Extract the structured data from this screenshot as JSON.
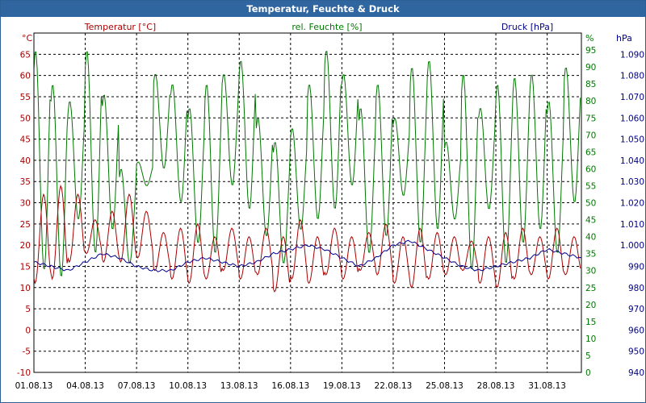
{
  "window": {
    "title": "Temperatur, Feuchte & Druck"
  },
  "chart_data": {
    "type": "line",
    "title": "Temperatur, Feuchte & Druck",
    "xlabel": "",
    "x_ticks": [
      "01.08.13",
      "04.08.13",
      "07.08.13",
      "10.08.13",
      "13.08.13",
      "16.08.13",
      "19.08.13",
      "22.08.13",
      "25.08.13",
      "28.08.13",
      "31.08.13"
    ],
    "x_range_days": [
      0,
      32
    ],
    "grid": true,
    "axes": {
      "temperature": {
        "label": "Temperatur [°C]",
        "unit": "°C",
        "ylim": [
          -10,
          70
        ],
        "ticks": [
          -10,
          -5,
          0,
          5,
          10,
          15,
          20,
          25,
          30,
          35,
          40,
          45,
          50,
          55,
          60,
          65
        ],
        "color": "#aa0000"
      },
      "humidity": {
        "label": "rel. Feuchte [%]",
        "unit": "%",
        "ylim": [
          0,
          100
        ],
        "ticks": [
          0,
          5,
          10,
          15,
          20,
          25,
          30,
          35,
          40,
          45,
          50,
          55,
          60,
          65,
          70,
          75,
          80,
          85,
          90,
          95
        ],
        "color": "#007700"
      },
      "pressure": {
        "label": "Druck [hPa]",
        "unit": "hPa",
        "ylim": [
          940,
          1100
        ],
        "ticks": [
          "940",
          "950",
          "960",
          "970",
          "980",
          "990",
          "1.000",
          "1.010",
          "1.020",
          "1.030",
          "1.040",
          "1.050",
          "1.060",
          "1.070",
          "1.080",
          "1.090"
        ],
        "color": "#00008b"
      }
    },
    "series": [
      {
        "name": "rel. Feuchte [%]",
        "axis": "humidity",
        "color": "#007700",
        "daily_max": [
          95,
          85,
          80,
          95,
          82,
          60,
          62,
          88,
          85,
          78,
          85,
          88,
          92,
          75,
          68,
          72,
          85,
          95,
          88,
          78,
          85,
          75,
          90,
          92,
          68,
          88,
          78,
          85,
          87,
          88,
          80,
          90
        ],
        "daily_min": [
          30,
          28,
          45,
          35,
          42,
          32,
          55,
          60,
          50,
          38,
          35,
          55,
          48,
          40,
          32,
          42,
          45,
          48,
          55,
          35,
          40,
          52,
          38,
          42,
          45,
          30,
          48,
          32,
          38,
          42,
          35,
          50
        ]
      },
      {
        "name": "Temperatur [°C]",
        "axis": "temperature",
        "color": "#aa0000",
        "daily_max": [
          32,
          34,
          32,
          26,
          28,
          32,
          28,
          23,
          24,
          25,
          22,
          24,
          22,
          24,
          22,
          26,
          22,
          24,
          22,
          23,
          25,
          22,
          24,
          23,
          22,
          21,
          22,
          23,
          24,
          22,
          24,
          22
        ],
        "daily_min": [
          11,
          12,
          16,
          18,
          16,
          16,
          17,
          14,
          12,
          11,
          12,
          14,
          12,
          13,
          9,
          12,
          11,
          13,
          12,
          14,
          13,
          11,
          10,
          12,
          13,
          14,
          11,
          10,
          12,
          13,
          12,
          13
        ]
      },
      {
        "name": "Druck [hPa]",
        "axis": "pressure",
        "color": "#00008b",
        "values": [
          992,
          990,
          988,
          992,
          996,
          994,
          990,
          988,
          988,
          992,
          994,
          992,
          990,
          992,
          996,
          998,
          1000,
          998,
          994,
          990,
          994,
          1000,
          1002,
          998,
          994,
          990,
          988,
          990,
          992,
          994,
          998,
          996,
          994
        ]
      }
    ]
  }
}
